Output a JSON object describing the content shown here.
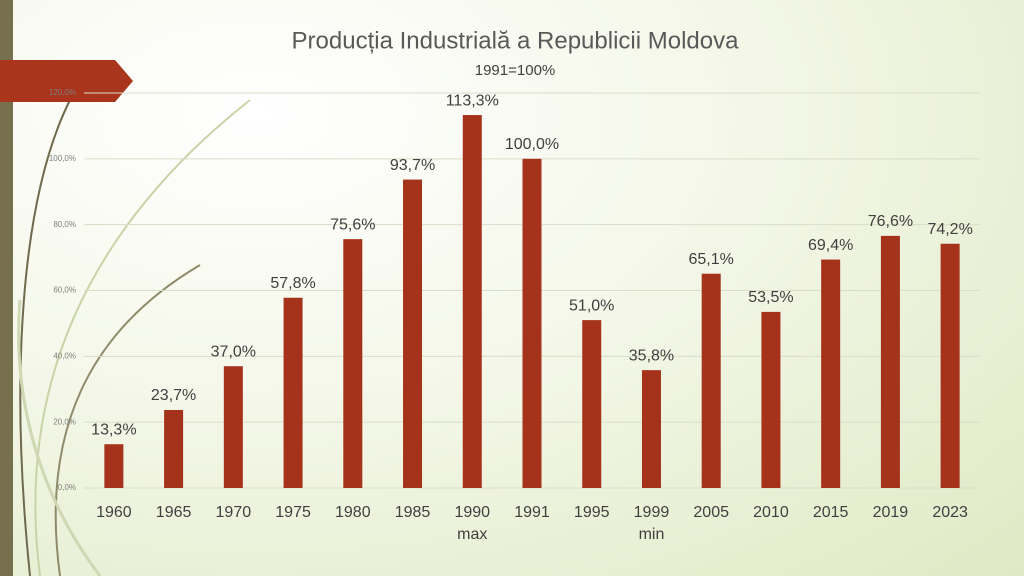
{
  "chart_data": {
    "type": "bar",
    "title": "Producția Industrială a Republicii Moldova",
    "subtitle": "1991=100%",
    "categories": [
      "1960",
      "1965",
      "1970",
      "1975",
      "1980",
      "1985",
      "1990\nmax",
      "1991",
      "1995",
      "1999\nmin",
      "2005",
      "2010",
      "2015",
      "2019",
      "2023"
    ],
    "values": [
      13.3,
      23.7,
      37.0,
      57.8,
      75.6,
      93.7,
      113.3,
      100.0,
      51.0,
      35.8,
      65.1,
      53.5,
      69.4,
      76.6,
      74.2
    ],
    "value_labels": [
      "13,3%",
      "23,7%",
      "37,0%",
      "57,8%",
      "75,6%",
      "93,7%",
      "113,3%",
      "100,0%",
      "51,0%",
      "35,8%",
      "65,1%",
      "53,5%",
      "69,4%",
      "76,6%",
      "74,2%"
    ],
    "color": "#a5321a",
    "ylim": [
      0,
      120
    ],
    "yticks": [
      {
        "value": 0,
        "label": "0,0%"
      },
      {
        "value": 20,
        "label": "20,0%"
      },
      {
        "value": 40,
        "label": "40,0%"
      },
      {
        "value": 60,
        "label": "60,0%"
      },
      {
        "value": 80,
        "label": "80,0%"
      },
      {
        "value": 100,
        "label": "100,0%"
      },
      {
        "value": 120,
        "label": "120,0%"
      }
    ],
    "grid": true
  }
}
